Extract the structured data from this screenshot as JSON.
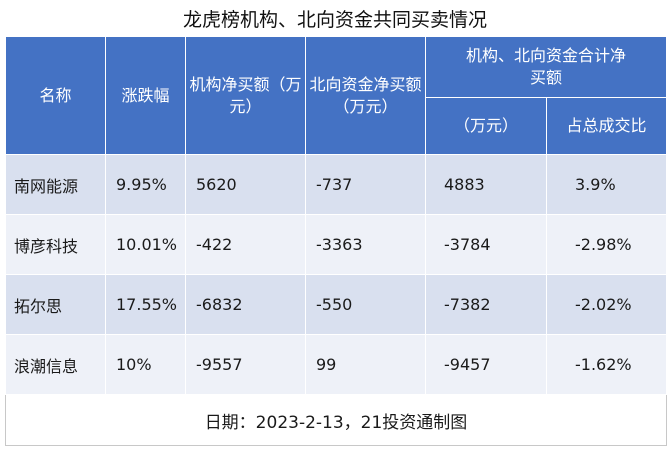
{
  "title": "龙虎榜机构、北向资金共同买卖情况",
  "headers": {
    "name": "名称",
    "change": "涨跌幅",
    "inst_net": "机构净买额（万元）",
    "north_net": "北向资金净买额（万元）",
    "combined_group": "机构、北向资金合计净买额",
    "combined_wan": "（万元）",
    "ratio": "占总成交比"
  },
  "rows": [
    {
      "name": "南网能源",
      "change": "9.95%",
      "inst_net": "5620",
      "north_net": "-737",
      "combined": "4883",
      "ratio": "3.9%"
    },
    {
      "name": "博彦科技",
      "change": "10.01%",
      "inst_net": "-422",
      "north_net": "-3363",
      "combined": "-3784",
      "ratio": "-2.98%"
    },
    {
      "name": "拓尔思",
      "change": "17.55%",
      "inst_net": "-6832",
      "north_net": "-550",
      "combined": "-7382",
      "ratio": "-2.02%"
    },
    {
      "name": "浪潮信息",
      "change": "10%",
      "inst_net": "-9557",
      "north_net": "99",
      "combined": "-9457",
      "ratio": "-1.62%"
    }
  ],
  "footer": "日期：2023-2-13，21投资通制图"
}
